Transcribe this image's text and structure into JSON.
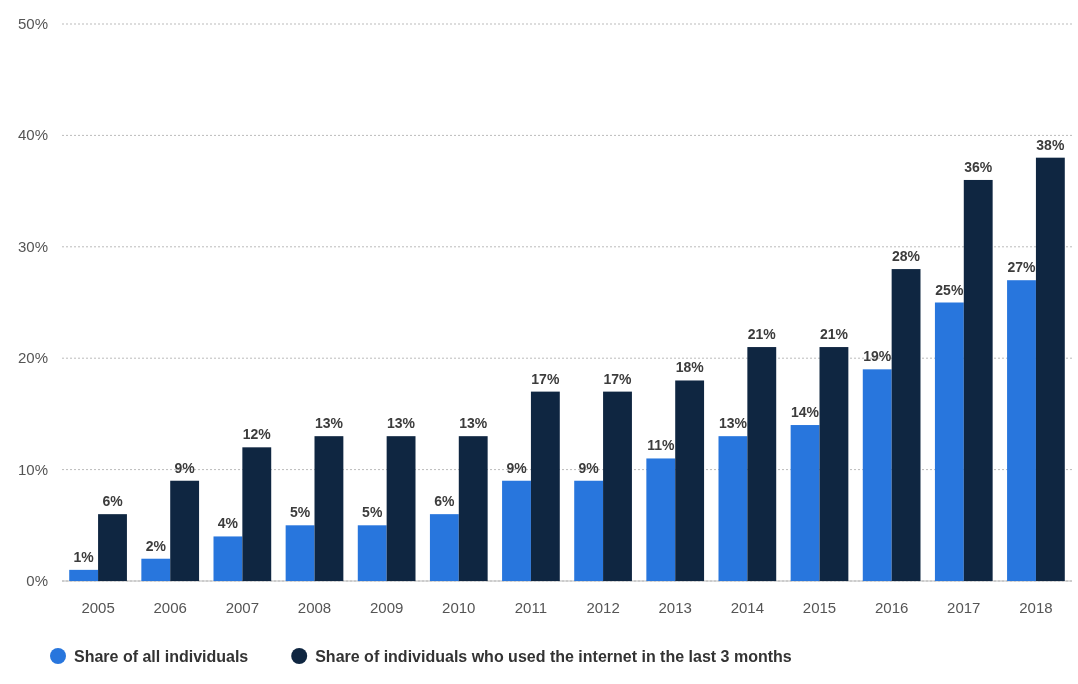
{
  "chart_data": {
    "type": "bar",
    "categories": [
      "2005",
      "2006",
      "2007",
      "2008",
      "2009",
      "2010",
      "2011",
      "2012",
      "2013",
      "2014",
      "2015",
      "2016",
      "2017",
      "2018"
    ],
    "series": [
      {
        "name": "Share of all individuals",
        "color": "#2876dd",
        "values": [
          1,
          2,
          4,
          5,
          5,
          6,
          9,
          9,
          11,
          13,
          14,
          19,
          25,
          27
        ],
        "value_labels": [
          "1%",
          "2%",
          "4%",
          "5%",
          "5%",
          "6%",
          "9%",
          "9%",
          "11%",
          "13%",
          "14%",
          "19%",
          "25%",
          "27%"
        ]
      },
      {
        "name": "Share of individuals who used the internet in the last 3 months",
        "color": "#0f2641",
        "values": [
          6,
          9,
          12,
          13,
          13,
          13,
          17,
          17,
          18,
          21,
          21,
          28,
          36,
          38
        ],
        "value_labels": [
          "6%",
          "9%",
          "12%",
          "13%",
          "13%",
          "13%",
          "17%",
          "17%",
          "18%",
          "21%",
          "21%",
          "28%",
          "36%",
          "38%"
        ]
      }
    ],
    "ylim": [
      0,
      50
    ],
    "yticks": [
      {
        "value": 0,
        "label": "0%"
      },
      {
        "value": 10,
        "label": "10%"
      },
      {
        "value": 20,
        "label": "20%"
      },
      {
        "value": 30,
        "label": "30%"
      },
      {
        "value": 40,
        "label": "40%"
      },
      {
        "value": 50,
        "label": "50%"
      }
    ],
    "grid": "y",
    "legend": "bottom"
  }
}
